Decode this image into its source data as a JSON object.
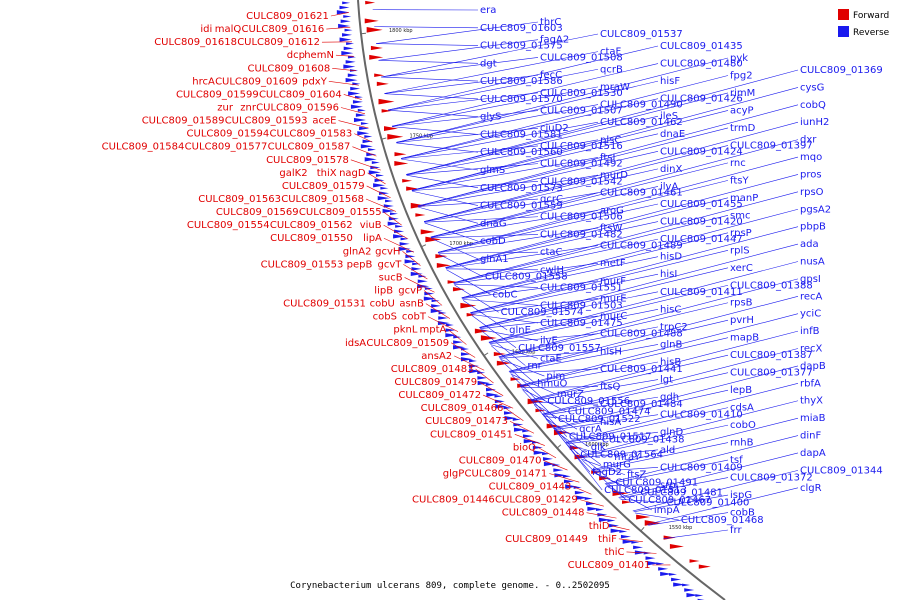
{
  "colors": {
    "forward": "#e00000",
    "reverse": "#1a1aee",
    "axis": "#666666",
    "tick_text": "#222222"
  },
  "legend": {
    "forward_label": "Forward",
    "reverse_label": "Reverse"
  },
  "caption": "Corynebacterium ulcerans 809, complete genome. - 0..2502095",
  "ticks": [
    "1800 kbp",
    "1750 kbp",
    "1700 kbp",
    "1650 kbp",
    "1600 kbp",
    "1550 kbp"
  ],
  "forward_labels": [
    "CULC809_01621",
    "idi",
    "malQ",
    "CULC809_01616",
    "CULC809_01618",
    "CULC809_01612",
    "dcp",
    "hemN",
    "CULC809_01608",
    "hrcA",
    "CULC809_01609",
    "pdxY",
    "CULC809_01599",
    "CULC809_01604",
    "zur",
    "znr",
    "CULC809_01596",
    "CULC809_01589",
    "CULC809_01593",
    "aceE",
    "CULC809_01594",
    "CULC809_01583",
    "CULC809_01584",
    "CULC809_01577",
    "CULC809_01587",
    "CULC809_01578",
    "galK2",
    "thiX",
    "nagD",
    "CULC809_01579",
    "CULC809_01563",
    "CULC809_01568",
    "CULC809_01569",
    "CULC809_01555",
    "CULC809_01554",
    "CULC809_01562",
    "viuB",
    "CULC809_01550",
    "lipA",
    "glnA2",
    "gcvH",
    "CULC809_01553",
    "pepB",
    "gcvT",
    "sucB",
    "lipB",
    "gcvP",
    "CULC809_01531",
    "cobU",
    "asnB",
    "cobS",
    "cobT",
    "pknL",
    "mptA",
    "idsA",
    "CULC809_01509",
    "ansA2",
    "CULC809_01483",
    "CULC809_01479",
    "CULC809_01472",
    "CULC809_01466",
    "CULC809_01473",
    "CULC809_01451",
    "bioQ",
    "CULC809_01470",
    "glgP",
    "CULC809_01471",
    "CULC809_01443",
    "CULC809_01446",
    "CULC809_01429",
    "CULC809_01448",
    "thiD",
    "CULC809_01449",
    "thiF",
    "thiC",
    "CULC809_01401"
  ],
  "reverse_labels": [
    "era",
    "CULC809_01603",
    "CULC809_01575",
    "dgt",
    "CULC809_01586",
    "CULC809_01570",
    "glyS",
    "CULC809_01581",
    "CULC809_01560",
    "glmS",
    "CULC809_01573",
    "CULC809_01559",
    "dnaG",
    "cobD",
    "glnA1",
    "CULC809_01558",
    "cobC",
    "CULC809_01574",
    "glnE",
    "CULC809_01557",
    "rnr",
    "hmuO",
    "CULC809_01556",
    "CULC809_01522",
    "CULC809_01517",
    "CULC809_01564",
    "fagD2",
    "CULC809_01513",
    "thrC",
    "fagA2",
    "CULC809_01508",
    "fecC",
    "CULC809_01530",
    "CULC809_01507",
    "ciuD2",
    "CULC809_01516",
    "CULC809_01492",
    "CULC809_01542",
    "qcrC",
    "CULC809_01506",
    "CULC809_01482",
    "ctaC",
    "cwlH",
    "CULC809_01551",
    "CULC809_01503",
    "CULC809_01475",
    "ilvE",
    "ctaE",
    "pim",
    "murZ",
    "CULC809_01474",
    "qcrA",
    "glk",
    "murG",
    "CULC809_01491",
    "CULC809_01467",
    "CULC809_01537",
    "ctaF",
    "qcrB",
    "mraW",
    "CULC809_01490",
    "CULC809_01462",
    "plsC",
    "ftsI",
    "murD",
    "CULC809_01461",
    "aroG",
    "ftsW",
    "CULC809_01489",
    "metF",
    "murF",
    "murE",
    "murC",
    "CULC809_01488",
    "hisH",
    "CULC809_01441",
    "ftsQ",
    "CULC809_01484",
    "hisA",
    "CULC809_01438",
    "mraY",
    "ftsZ",
    "CULC809_01481",
    "impA",
    "CULC809_01435",
    "CULC809_01480",
    "hisF",
    "CULC809_01426",
    "ileS",
    "dnaE",
    "CULC809_01424",
    "dinX",
    "ilvA",
    "CULC809_01455",
    "CULC809_01420",
    "CULC809_01447",
    "hisD",
    "hisI",
    "CULC809_01411",
    "hisC",
    "trpC2",
    "glnB",
    "hisB",
    "lgt",
    "gdh",
    "CULC809_01410",
    "glnD",
    "ald",
    "CULC809_01409",
    "srp",
    "CULC809_01400",
    "CULC809_01468",
    "pyk",
    "fpg2",
    "rimM",
    "acyP",
    "trmD",
    "CULC809_01397",
    "rnc",
    "ftsY",
    "manP",
    "smc",
    "rpsP",
    "rplS",
    "xerC",
    "CULC809_01388",
    "rpsB",
    "pvrH",
    "mapB",
    "CULC809_01387",
    "CULC809_01377",
    "lepB",
    "cdsA",
    "cobO",
    "rnhB",
    "tsf",
    "CULC809_01372",
    "ispG",
    "cobB",
    "frr",
    "CULC809_01369",
    "cysG",
    "cobQ",
    "iunH2",
    "dxr",
    "mqo",
    "pros",
    "rpsO",
    "pgsA2",
    "pbpB",
    "ada",
    "nusA",
    "gpsI",
    "recA",
    "yciC",
    "infB",
    "recX",
    "dapB",
    "rbfA",
    "thyX",
    "miaB",
    "dinF",
    "dapA",
    "CULC809_01344",
    "clgR"
  ]
}
